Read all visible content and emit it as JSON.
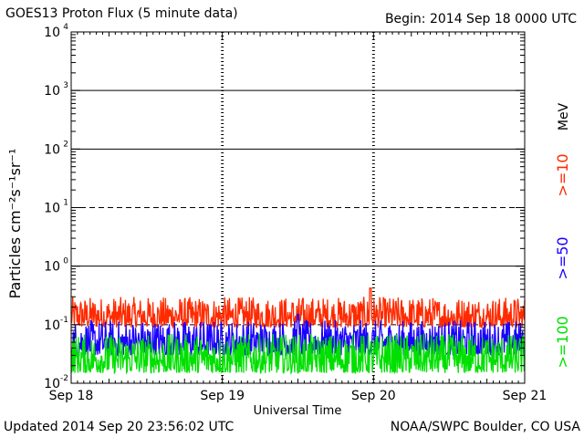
{
  "header": {
    "title": "GOES13 Proton Flux (5 minute data)",
    "begin": "Begin: 2014 Sep 18 0000 UTC"
  },
  "footer": {
    "updated": "Updated 2014 Sep 20 23:56:02 UTC",
    "source": "NOAA/SWPC Boulder, CO USA"
  },
  "chart_data": {
    "type": "line",
    "xlabel": "Universal Time",
    "ylabel": "Particles cm⁻²s⁻¹sr⁻¹",
    "y_scale": "log",
    "ylim": [
      0.01,
      10000
    ],
    "xlim": [
      "Sep 18",
      "Sep 21"
    ],
    "x_ticks": [
      "Sep 18",
      "Sep 19",
      "Sep 20",
      "Sep 21"
    ],
    "y_ticks": [
      {
        "base": "10",
        "exp": "-2"
      },
      {
        "base": "10",
        "exp": "-1"
      },
      {
        "base": "10",
        "exp": "0"
      },
      {
        "base": "10",
        "exp": "1"
      },
      {
        "base": "10",
        "exp": "2"
      },
      {
        "base": "10",
        "exp": "3"
      },
      {
        "base": "10",
        "exp": "4"
      }
    ],
    "thresholds": [
      {
        "value": 10,
        "style": "dashed"
      },
      {
        "value": 0.1,
        "style": "dashed"
      }
    ],
    "legend_unit": "MeV",
    "series": [
      {
        "name": ">=10",
        "color": "#ff2a00",
        "typical_range": [
          0.09,
          0.3
        ],
        "peak": 0.42
      },
      {
        "name": ">=50",
        "color": "#1a00ff",
        "typical_range": [
          0.03,
          0.12
        ],
        "peak": 0.15
      },
      {
        "name": ">=100",
        "color": "#00e000",
        "typical_range": [
          0.015,
          0.07
        ],
        "peak": 0.09
      }
    ]
  }
}
